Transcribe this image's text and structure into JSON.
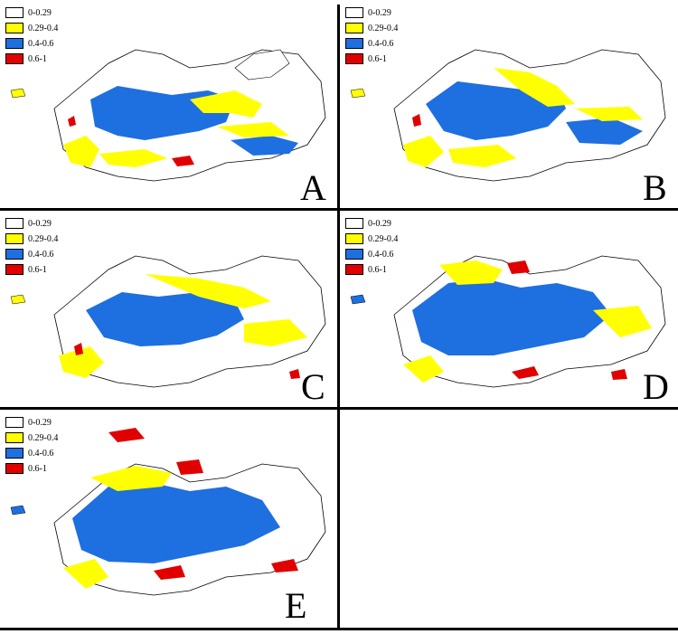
{
  "legend_classes": [
    {
      "label": "0-0.29",
      "color": "#ffffff"
    },
    {
      "label": "0.29-0.4",
      "color": "#ffff00"
    },
    {
      "label": "0.4-0.6",
      "color": "#1e6fe0"
    },
    {
      "label": "0.6-1",
      "color": "#e00000"
    }
  ],
  "panels": [
    {
      "label": "A"
    },
    {
      "label": "B"
    },
    {
      "label": "C"
    },
    {
      "label": "D"
    },
    {
      "label": "E"
    }
  ],
  "colors": {
    "outline": "#000000",
    "unsuitable": "#ffffff",
    "low": "#ffff00",
    "medium": "#1e6fe0",
    "high": "#e00000"
  }
}
